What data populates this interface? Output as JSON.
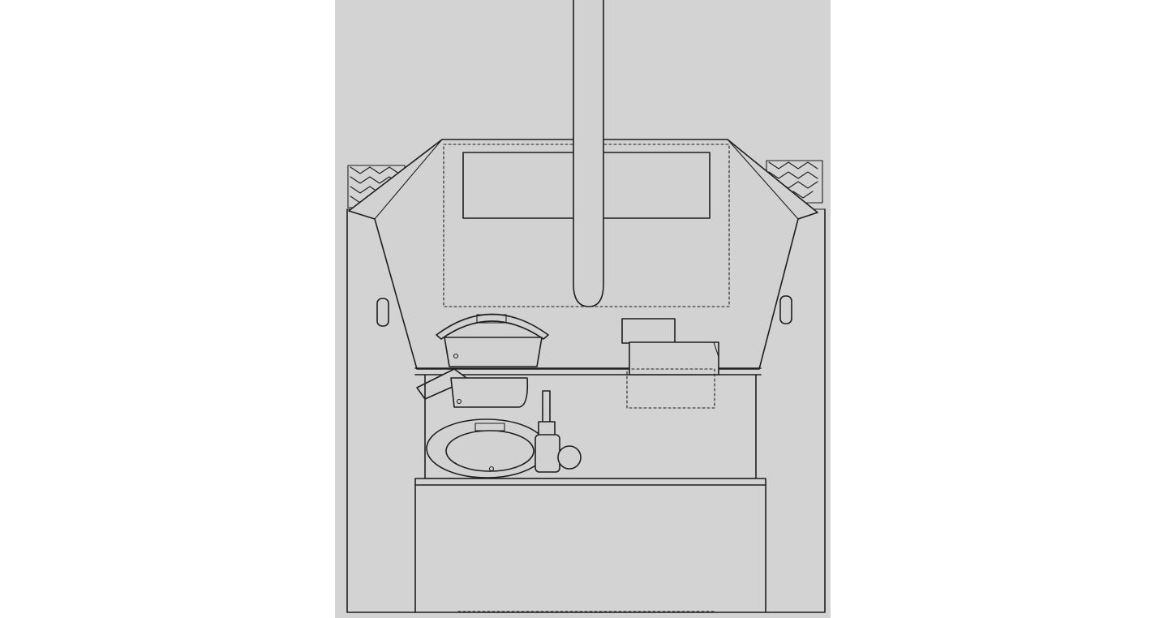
{
  "colors": {
    "background": "#ffffff",
    "paper": "#d3d3d3",
    "line": "#1e1e1e"
  }
}
